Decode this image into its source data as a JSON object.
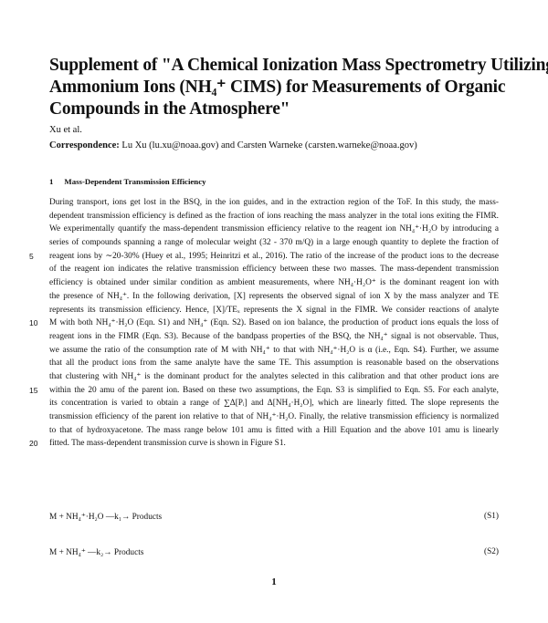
{
  "title": "Supplement of \"A Chemical Ionization Mass Spectrometry Utilizing Ammonium Ions (NH₄⁺ CIMS) for Measurements of Organic Compounds in the Atmosphere\"",
  "title_lines": [
    "Supplement of \"A Chemical Ionization Mass Spectrometry Utilizing",
    "Ammonium Ions (NH₄⁺ CIMS) for Measurements of Organic",
    "Compounds in the Atmosphere\""
  ],
  "authors": "Xu et al.",
  "correspondence_label": "Correspondence:",
  "correspondence_text": " Lu Xu (lu.xu@noaa.gov) and Carsten Warneke (carsten.warneke@noaa.gov)",
  "section": {
    "number": "1",
    "title": "Mass-Dependent Transmission Efficiency"
  },
  "lines": [
    "During transport, ions get lost in the BSQ, in the ion guides, and in the extraction region of the ToF. In this study, the mass-",
    "dependent transmission efficiency is defined as the fraction of ions reaching the mass analyzer in the total ions exiting the FIMR.",
    "We experimentally quantify the mass-dependent transmission efficiency relative to the reagent ion NH₄⁺·H₂O by introducing a",
    "series of compounds spanning a range of molecular weight (32 - 370 m/Q) in a large enough quantity to deplete the fraction of",
    "reagent ions by ∼20-30% (Huey et al., 1995; Heinritzi et al., 2016). The ratio of the increase of the product ions to the decrease",
    "of the reagent ion indicates the relative transmission efficiency between these two masses. The mass-dependent transmission",
    "efficiency is obtained under similar condition as ambient measurements, where NH₄·H₂O⁺ is the dominant reagent ion with",
    "the presence of NH₄⁺. In the following derivation, [X] represents the observed signal of ion X by the mass analyzer and TE",
    "represents its transmission efficiency. Hence, [X]/TEₓ represents the X signal in the FIMR. We consider reactions of analyte",
    "M with both NH₄⁺·H₂O (Eqn. S1) and NH₄⁺ (Eqn. S2). Based on ion balance, the production of product ions equals the loss of",
    "reagent ions in the FIMR (Eqn. S3). Because of the bandpass properties of the BSQ, the NH₄⁺ signal is not observable. Thus,",
    "we assume the ratio of the consumption rate of M with NH₄⁺ to that with NH₄⁺·H₂O is α (i.e., Eqn. S4). Further, we assume",
    "that all the product ions from the same analyte have the same TE. This assumption is reasonable based on the observations",
    "that clustering with NH₄⁺ is the dominant product for the analytes selected in this calibration and that other product ions are",
    "within the 20 amu of the parent ion. Based on these two assumptions, the Eqn. S3 is simplified to Eqn. S5. For each analyte,",
    "its concentration is varied to obtain a range of ∑Δ[Pᵢ] and Δ[NH₄·H₂O], which are linearly fitted. The slope represents the",
    "transmission efficiency of the parent ion relative to that of NH₄⁺·H₂O. Finally, the relative transmission efficiency is normalized",
    "to that of hydroxyacetone. The mass range below 101 amu is fitted with a Hill Equation and the above 101 amu is linearly",
    "fitted. The mass-dependent transmission curve is shown in Figure S1."
  ],
  "line_numbers": {
    "4": "5",
    "9": "10",
    "14": "15",
    "18": "20"
  },
  "equations": [
    {
      "expr": "M + NH₄⁺·H₂O —k₁→ Products",
      "label": "(S1)"
    },
    {
      "expr": "M + NH₄⁺ —k₂→ Products",
      "label": "(S2)"
    }
  ],
  "page_number": "1"
}
